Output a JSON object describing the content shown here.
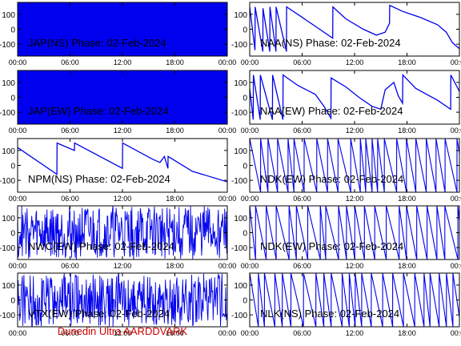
{
  "footer": {
    "credit": "Dunedin Ultra AARDDVARK",
    "credit_color": "#cc0000"
  },
  "colors": {
    "trace": "#0000ee",
    "axis": "#000000",
    "background": "#ffffff"
  },
  "chart_data": [
    {
      "type": "line",
      "station": "JAP",
      "component": "NS",
      "title": "JAP(NS) Phase: 02-Feb-2024",
      "xticks": [
        "00:00",
        "06:00",
        "12:00",
        "18:00",
        "00:00"
      ],
      "yticks": [
        "100",
        "0",
        "-100"
      ],
      "ylim": [
        -180,
        180
      ],
      "xlim_hours": [
        0,
        24
      ],
      "pattern": "saturated",
      "x": [],
      "y": []
    },
    {
      "type": "line",
      "station": "NAA",
      "component": "NS",
      "title": "NAA(NS) Phase: 02-Feb-2024",
      "xticks": [
        "00:00",
        "06:00",
        "12:00",
        "18:00",
        "00:00"
      ],
      "yticks": [
        "100",
        "0",
        "-100"
      ],
      "ylim": [
        -180,
        180
      ],
      "xlim_hours": [
        0,
        24
      ],
      "pattern": "line",
      "x": [
        0,
        0.6,
        0.62,
        1.5,
        1.52,
        2.3,
        2.32,
        3.0,
        3.02,
        4.2,
        4.22,
        6.0,
        9.5,
        9.52,
        11.0,
        13.0,
        14.5,
        15.5,
        16.0,
        16.02,
        17.5,
        19.5,
        21.5,
        22.5,
        23.2,
        24.0
      ],
      "y": [
        150,
        -140,
        150,
        -150,
        140,
        -150,
        150,
        -150,
        150,
        -150,
        150,
        80,
        -60,
        150,
        70,
        0,
        -40,
        -20,
        40,
        160,
        120,
        80,
        30,
        -20,
        -90,
        -130
      ]
    },
    {
      "type": "line",
      "station": "JAP",
      "component": "EW",
      "title": "JAP(EW) Phase: 02-Feb-2024",
      "xticks": [
        "00:00",
        "06:00",
        "12:00",
        "18:00",
        "00:00"
      ],
      "yticks": [
        "100",
        "0",
        "-100"
      ],
      "ylim": [
        -180,
        180
      ],
      "xlim_hours": [
        0,
        24
      ],
      "pattern": "saturated",
      "x": [],
      "y": []
    },
    {
      "type": "line",
      "station": "NAA",
      "component": "EW",
      "title": "NAA(EW) Phase: 02-Feb-2024",
      "xticks": [
        "00:00",
        "06:00",
        "12:00",
        "18:00",
        "00:00"
      ],
      "yticks": [
        "100",
        "0",
        "-100"
      ],
      "ylim": [
        -180,
        180
      ],
      "xlim_hours": [
        0,
        24
      ],
      "pattern": "line",
      "x": [
        0,
        0.4,
        0.42,
        1.2,
        1.22,
        2.6,
        2.62,
        3.8,
        3.82,
        5.5,
        7.5,
        8.5,
        9.3,
        9.32,
        11.0,
        12.5,
        14.0,
        15.0,
        15.5,
        16.5,
        17.0,
        17.5,
        17.52,
        19.0,
        21.5,
        23.0,
        23.02,
        24.0
      ],
      "y": [
        60,
        -150,
        150,
        -150,
        150,
        -150,
        150,
        -150,
        150,
        80,
        20,
        -60,
        -140,
        130,
        70,
        0,
        -60,
        -80,
        50,
        100,
        10,
        -40,
        150,
        60,
        -20,
        -80,
        150,
        40
      ]
    },
    {
      "type": "line",
      "station": "NPM",
      "component": "NS",
      "title": "NPM(NS) Phase: 02-Feb-2024",
      "xticks": [
        "00:00",
        "06:00",
        "12:00",
        "18:00",
        "00:00"
      ],
      "yticks": [
        "100",
        "0",
        "-100"
      ],
      "ylim": [
        -180,
        180
      ],
      "xlim_hours": [
        0,
        24
      ],
      "pattern": "line",
      "x": [
        0,
        4.5,
        4.52,
        6.5,
        6.52,
        12.0,
        12.02,
        15.5,
        16.3,
        16.8,
        17.2,
        17.22,
        20.0,
        24.0
      ],
      "y": [
        120,
        -60,
        150,
        100,
        150,
        -20,
        150,
        40,
        20,
        60,
        -20,
        60,
        -40,
        -110
      ]
    },
    {
      "type": "line",
      "station": "NDK",
      "component": "EW",
      "title": "NDK(EW) Phase: 02-Feb-2024",
      "xticks": [
        "00:00",
        "06:00",
        "12:00",
        "18:00",
        "00:00"
      ],
      "yticks": [
        "100",
        "0",
        "-100"
      ],
      "ylim": [
        -180,
        180
      ],
      "xlim_hours": [
        0,
        24
      ],
      "pattern": "sawtooth",
      "x": [],
      "y": []
    },
    {
      "type": "line",
      "station": "NWC",
      "component": "EW",
      "title": "NWC(EW) Phase: 02-Feb-2024",
      "xticks": [
        "00:00",
        "06:00",
        "12:00",
        "18:00",
        "00:00"
      ],
      "yticks": [
        "100",
        "0",
        "-100"
      ],
      "ylim": [
        -180,
        180
      ],
      "xlim_hours": [
        0,
        24
      ],
      "pattern": "noise",
      "x": [],
      "y": []
    },
    {
      "type": "line",
      "station": "NDK",
      "component": "EW",
      "title": "NDK(EW) Phase: 02-Feb-2024",
      "xticks": [
        "00:00",
        "06:00",
        "12:00",
        "18:00",
        "00:00"
      ],
      "yticks": [
        "100",
        "0",
        "-100"
      ],
      "ylim": [
        -180,
        180
      ],
      "xlim_hours": [
        0,
        24
      ],
      "pattern": "sawtooth",
      "x": [],
      "y": []
    },
    {
      "type": "line",
      "station": "VTX",
      "component": "EW",
      "title": "VTX(EW) Phase: 02-Feb-2024",
      "xticks": [
        "00:00",
        "06:00",
        "12:00",
        "18:00",
        "00:00"
      ],
      "yticks": [
        "100",
        "0",
        "-100"
      ],
      "ylim": [
        -180,
        180
      ],
      "xlim_hours": [
        0,
        24
      ],
      "pattern": "noise",
      "x": [],
      "y": []
    },
    {
      "type": "line",
      "station": "NLK",
      "component": "NS",
      "title": "NLK(NS) Phase: 02-Feb-2024",
      "xticks": [
        "00:00",
        "06:00",
        "12:00",
        "18:00",
        "00:00"
      ],
      "yticks": [
        "100",
        "0",
        "-100"
      ],
      "ylim": [
        -180,
        180
      ],
      "xlim_hours": [
        0,
        24
      ],
      "pattern": "sawtooth",
      "x": [],
      "y": []
    }
  ]
}
